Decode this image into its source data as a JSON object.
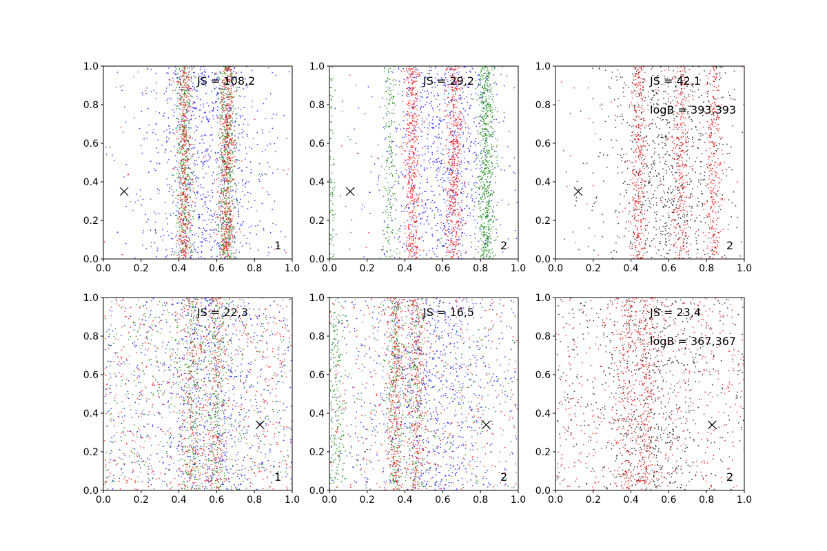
{
  "colors": {
    "blue": "#0000ff",
    "green": "#008000",
    "red": "#ff0000",
    "black": "#000000",
    "axes": "#000000",
    "background": "#ffffff"
  },
  "chart_data": [
    {
      "type": "scatter",
      "panel": 1,
      "xlim": [
        0,
        1
      ],
      "ylim": [
        0,
        1
      ],
      "xticks": [
        "0.0",
        "0.2",
        "0.4",
        "0.6",
        "0.8",
        "1.0"
      ],
      "yticks": [
        "0.0",
        "0.2",
        "0.4",
        "0.6",
        "0.8",
        "1.0"
      ],
      "annotations": [
        "JS = 108,2"
      ],
      "corner_label": "1",
      "marker": {
        "symbol": "x",
        "x": 0.11,
        "y": 0.35
      },
      "series": [
        {
          "color": "blue",
          "density": 0.06,
          "bands": [
            {
              "center": 0.54,
              "width": 0.16,
              "weight": 0.9
            }
          ]
        },
        {
          "color": "green",
          "density": 0.04,
          "bands": [
            {
              "center": 0.43,
              "width": 0.022,
              "weight": 0.9
            },
            {
              "center": 0.655,
              "width": 0.024,
              "weight": 1.0
            }
          ]
        },
        {
          "color": "red",
          "density": 0.02,
          "bands": [
            {
              "center": 0.43,
              "width": 0.018,
              "weight": 0.8
            },
            {
              "center": 0.655,
              "width": 0.02,
              "weight": 1.0
            }
          ]
        }
      ]
    },
    {
      "type": "scatter",
      "panel": 2,
      "xlim": [
        0,
        1
      ],
      "ylim": [
        0,
        1
      ],
      "xticks": [
        "0.0",
        "0.2",
        "0.4",
        "0.6",
        "0.8",
        "1.0"
      ],
      "yticks": [
        "0.0",
        "0.2",
        "0.4",
        "0.6",
        "0.8",
        "1.0"
      ],
      "annotations": [
        "JS = 29,2"
      ],
      "corner_label": "2",
      "marker": {
        "symbol": "x",
        "x": 0.11,
        "y": 0.35
      },
      "series": [
        {
          "color": "blue",
          "density": 0.08,
          "bands": [
            {
              "center": 0.6,
              "width": 0.15,
              "weight": 0.9
            }
          ]
        },
        {
          "color": "green",
          "density": 0.03,
          "bands": [
            {
              "center": 0.83,
              "width": 0.022,
              "weight": 1.0
            },
            {
              "center": 0.32,
              "width": 0.02,
              "weight": 0.3
            },
            {
              "center": 0.01,
              "width": 0.01,
              "weight": 0.15
            }
          ]
        },
        {
          "color": "red",
          "density": 0.01,
          "bands": [
            {
              "center": 0.44,
              "width": 0.02,
              "weight": 0.8
            },
            {
              "center": 0.66,
              "width": 0.022,
              "weight": 0.9
            }
          ]
        }
      ]
    },
    {
      "type": "scatter",
      "panel": 3,
      "xlim": [
        0,
        1
      ],
      "ylim": [
        0,
        1
      ],
      "xticks": [
        "0.0",
        "0.2",
        "0.4",
        "0.6",
        "0.8",
        "1.0"
      ],
      "yticks": [
        "0.0",
        "0.2",
        "0.4",
        "0.6",
        "0.8",
        "1.0"
      ],
      "annotations": [
        "JS = 42,1",
        "logB = 393,393"
      ],
      "corner_label": "2",
      "marker": {
        "symbol": "x",
        "x": 0.12,
        "y": 0.35
      },
      "series": [
        {
          "color": "black",
          "density": 0.05,
          "bands": [
            {
              "center": 0.6,
              "width": 0.16,
              "weight": 1.0
            }
          ]
        },
        {
          "color": "red",
          "density": 0.06,
          "bands": [
            {
              "center": 0.44,
              "width": 0.022,
              "weight": 0.9
            },
            {
              "center": 0.66,
              "width": 0.024,
              "weight": 1.0
            },
            {
              "center": 0.84,
              "width": 0.022,
              "weight": 0.8
            }
          ]
        }
      ]
    },
    {
      "type": "scatter",
      "panel": 4,
      "xlim": [
        0,
        1
      ],
      "ylim": [
        0,
        1
      ],
      "xticks": [
        "0.0",
        "0.2",
        "0.4",
        "0.6",
        "0.8",
        "1.0"
      ],
      "yticks": [
        "0.0",
        "0.2",
        "0.4",
        "0.6",
        "0.8",
        "1.0"
      ],
      "annotations": [
        "JS = 22,3"
      ],
      "corner_label": "1",
      "marker": {
        "symbol": "x",
        "x": 0.83,
        "y": 0.34
      },
      "series": [
        {
          "color": "blue",
          "density": 0.55,
          "bands": [
            {
              "center": 0.55,
              "width": 0.12,
              "weight": 0.5
            }
          ]
        },
        {
          "color": "green",
          "density": 0.55,
          "bands": [
            {
              "center": 0.47,
              "width": 0.03,
              "weight": 0.3
            },
            {
              "center": 0.6,
              "width": 0.03,
              "weight": 0.3
            }
          ]
        },
        {
          "color": "red",
          "density": 0.6,
          "bands": [
            {
              "center": 0.47,
              "width": 0.03,
              "weight": 0.3
            },
            {
              "center": 0.6,
              "width": 0.03,
              "weight": 0.3
            }
          ]
        }
      ]
    },
    {
      "type": "scatter",
      "panel": 5,
      "xlim": [
        0,
        1
      ],
      "ylim": [
        0,
        1
      ],
      "xticks": [
        "0.0",
        "0.2",
        "0.4",
        "0.6",
        "0.8",
        "1.0"
      ],
      "yticks": [
        "0.0",
        "0.2",
        "0.4",
        "0.6",
        "0.8",
        "1.0"
      ],
      "annotations": [
        "JS = 16,5"
      ],
      "corner_label": "2",
      "marker": {
        "symbol": "x",
        "x": 0.83,
        "y": 0.34
      },
      "series": [
        {
          "color": "blue",
          "density": 0.4,
          "bands": [
            {
              "center": 0.55,
              "width": 0.14,
              "weight": 0.6
            }
          ]
        },
        {
          "color": "green",
          "density": 0.3,
          "bands": [
            {
              "center": 0.35,
              "width": 0.025,
              "weight": 0.5
            },
            {
              "center": 0.46,
              "width": 0.025,
              "weight": 0.4
            },
            {
              "center": 0.03,
              "width": 0.03,
              "weight": 0.4
            }
          ]
        },
        {
          "color": "red",
          "density": 0.4,
          "bands": [
            {
              "center": 0.35,
              "width": 0.025,
              "weight": 0.6
            },
            {
              "center": 0.46,
              "width": 0.025,
              "weight": 0.5
            }
          ]
        }
      ]
    },
    {
      "type": "scatter",
      "panel": 6,
      "xlim": [
        0,
        1
      ],
      "ylim": [
        0,
        1
      ],
      "xticks": [
        "0.0",
        "0.2",
        "0.4",
        "0.6",
        "0.8",
        "1.0"
      ],
      "yticks": [
        "0.0",
        "0.2",
        "0.4",
        "0.6",
        "0.8",
        "1.0"
      ],
      "annotations": [
        "JS = 23,4",
        "logB = 367,367"
      ],
      "corner_label": "2",
      "marker": {
        "symbol": "x",
        "x": 0.83,
        "y": 0.34
      },
      "series": [
        {
          "color": "black",
          "density": 0.5,
          "bands": [
            {
              "center": 0.5,
              "width": 0.12,
              "weight": 0.5
            }
          ]
        },
        {
          "color": "red",
          "density": 0.55,
          "bands": [
            {
              "center": 0.38,
              "width": 0.03,
              "weight": 0.4
            },
            {
              "center": 0.48,
              "width": 0.025,
              "weight": 0.4
            }
          ]
        }
      ]
    }
  ]
}
